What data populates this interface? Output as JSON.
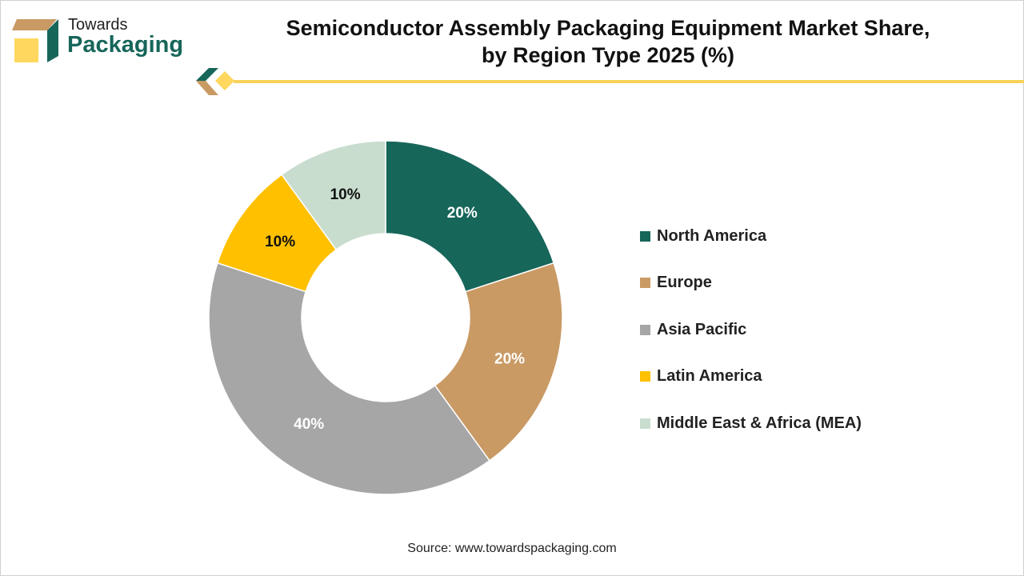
{
  "logo": {
    "line1": "Towards",
    "line2": "Packaging"
  },
  "title_line1": "Semiconductor Assembly Packaging Equipment Market Share,",
  "title_line2": "by Region Type 2025 (%)",
  "source": "Source: www.towardspackaging.com",
  "chart_data": {
    "type": "pie",
    "donut": true,
    "title": "Semiconductor Assembly Packaging Equipment Market Share, by Region Type 2025 (%)",
    "categories": [
      "North America",
      "Europe",
      "Asia Pacific",
      "Latin America",
      "Middle East & Africa (MEA)"
    ],
    "values": [
      20,
      20,
      40,
      10,
      10
    ],
    "labels": [
      "20%",
      "20%",
      "40%",
      "10%",
      "10%"
    ],
    "colors": [
      "#17665A",
      "#C99A64",
      "#A6A6A6",
      "#FFC000",
      "#C9DDCF"
    ],
    "label_colors": [
      "#ffffff",
      "#ffffff",
      "#ffffff",
      "#111111",
      "#111111"
    ],
    "legend_position": "right"
  }
}
